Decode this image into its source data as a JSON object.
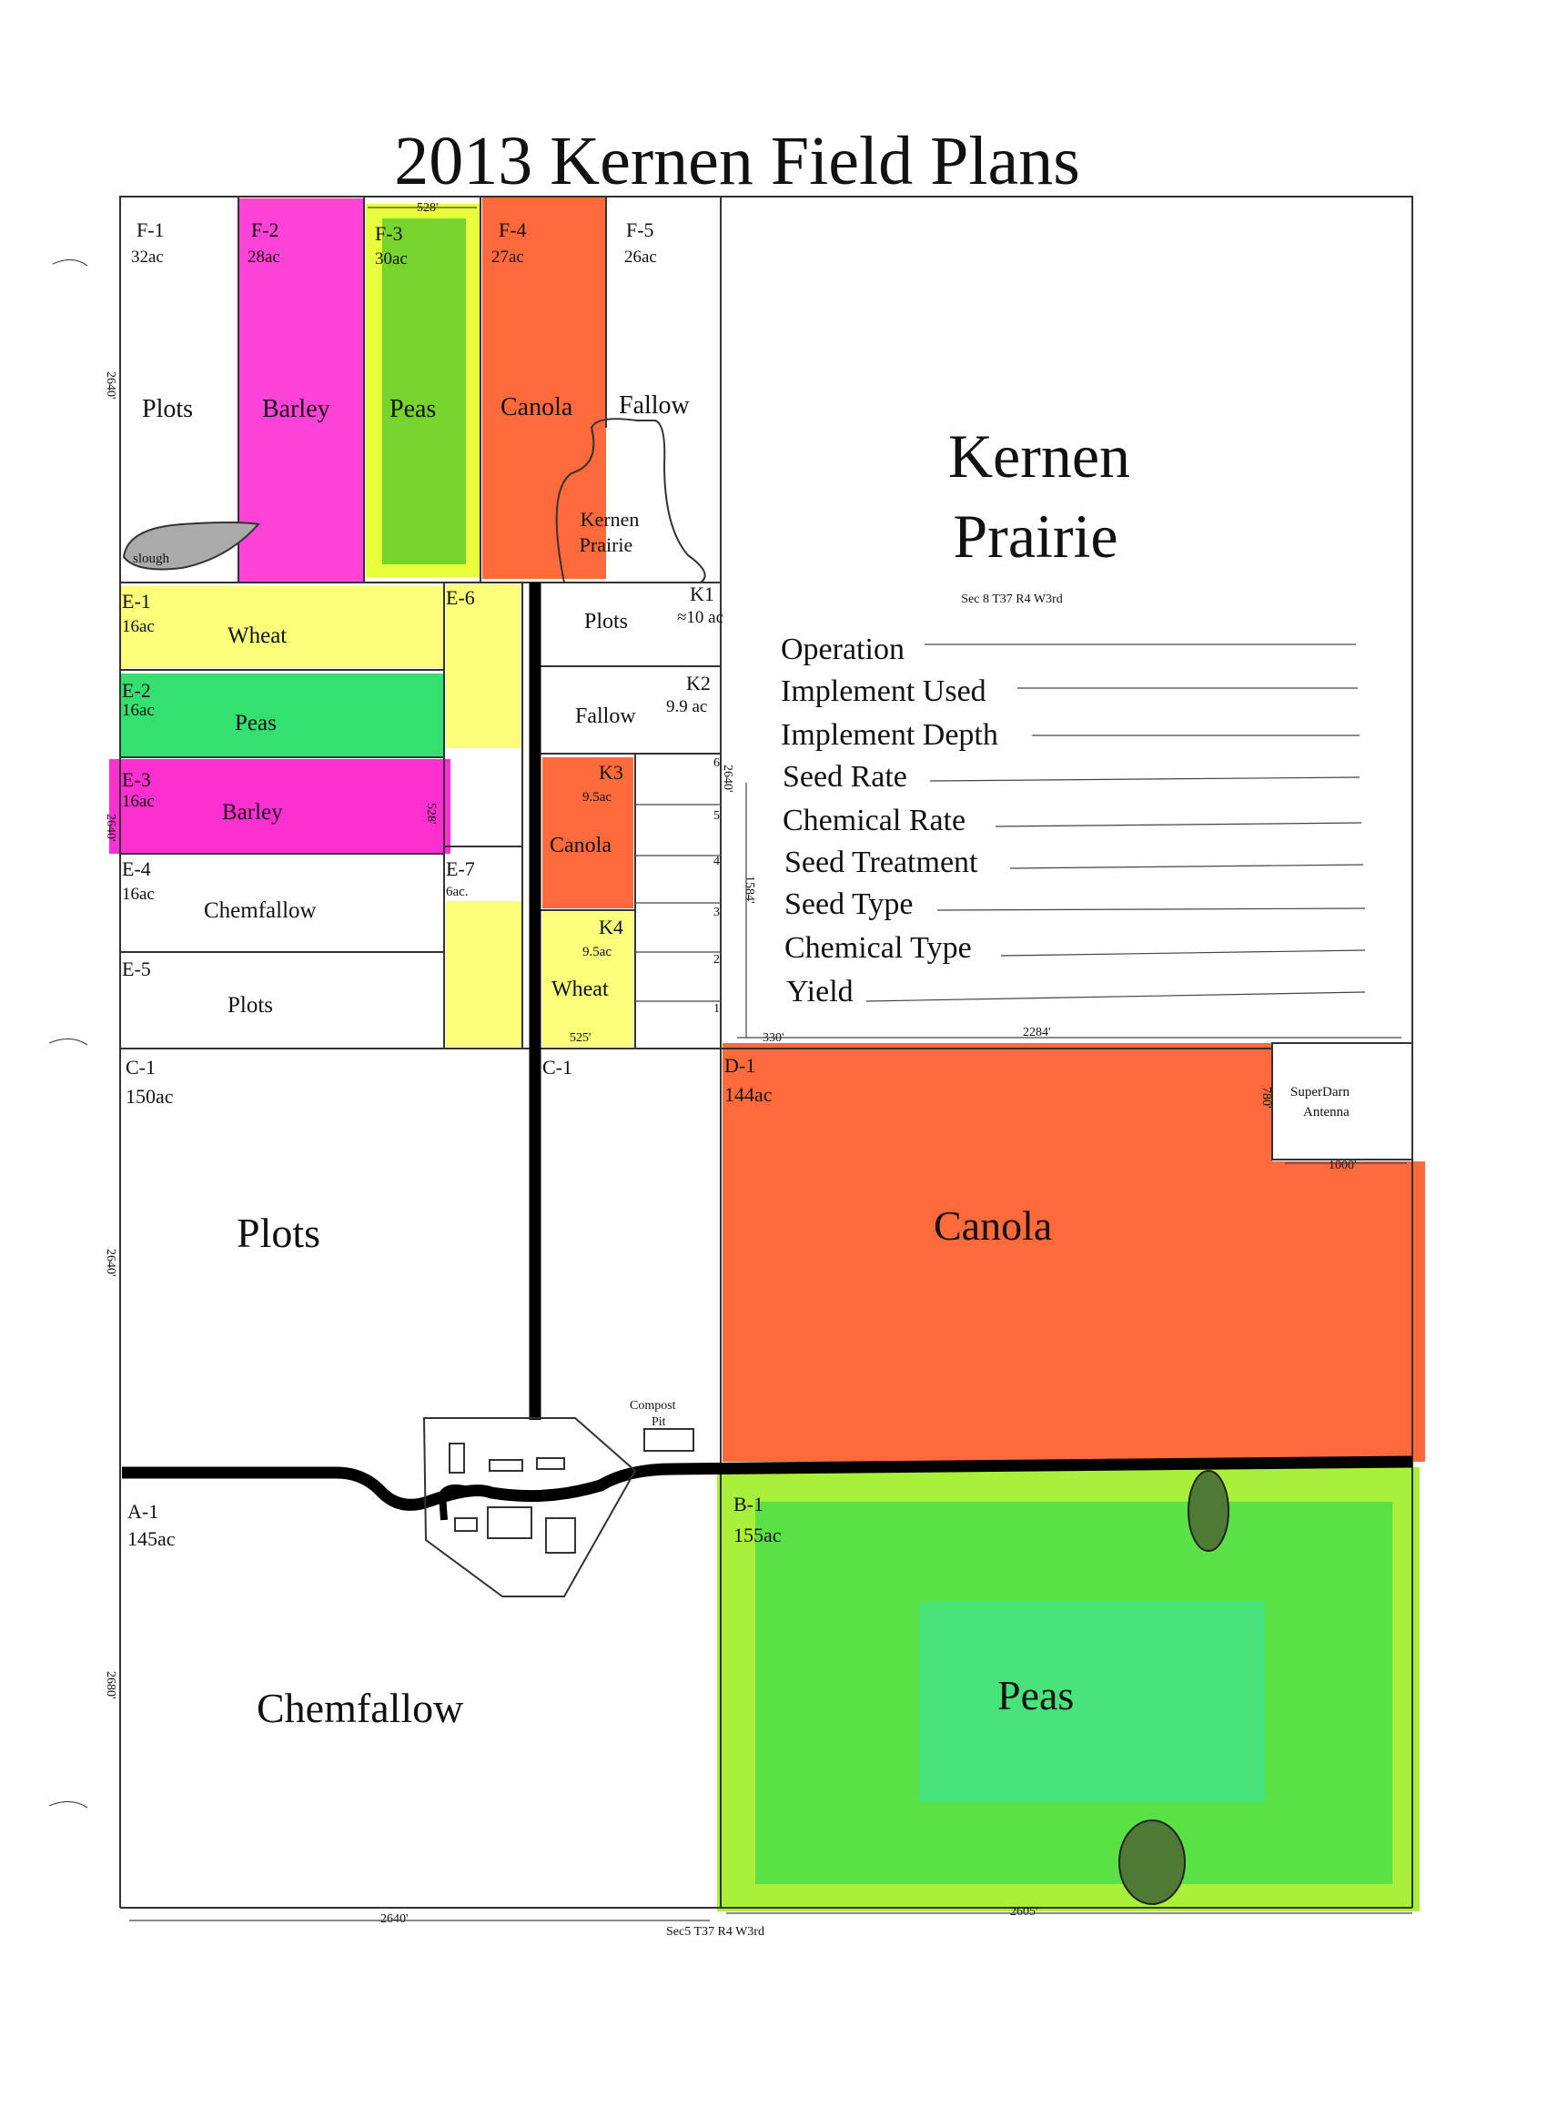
{
  "title": "2013 Kernen Field Plans",
  "colors": {
    "barley": "#ff2fd2",
    "peas": "#7fe63a",
    "peas_light": "#e8ff3c",
    "canola": "#ff6a3d",
    "wheat": "#fbff7a",
    "slough": "#aaaaaa",
    "road": "#000000"
  },
  "fields": {
    "F1": {
      "id": "F-1",
      "acres": "32ac",
      "crop": "Plots"
    },
    "F2": {
      "id": "F-2",
      "acres": "28ac",
      "crop": "Barley"
    },
    "F3": {
      "id": "F-3",
      "acres": "30ac",
      "crop": "Peas"
    },
    "F4": {
      "id": "F-4",
      "acres": "27ac",
      "crop": "Canola"
    },
    "F5": {
      "id": "F-5",
      "acres": "26ac",
      "crop": "Fallow"
    },
    "E1": {
      "id": "E-1",
      "acres": "16ac",
      "crop": "Wheat"
    },
    "E2": {
      "id": "E-2",
      "acres": "16ac",
      "crop": "Peas"
    },
    "E3": {
      "id": "E-3",
      "acres": "16ac",
      "crop": "Barley"
    },
    "E4": {
      "id": "E-4",
      "acres": "16ac",
      "crop": "Chemfallow"
    },
    "E5": {
      "id": "E-5",
      "crop": "Plots"
    },
    "E6": {
      "id": "E-6"
    },
    "E7": {
      "id": "E-7",
      "acres": "6ac."
    },
    "K1": {
      "id": "K1",
      "acres": "≈10 ac",
      "crop": "Plots"
    },
    "K2": {
      "id": "K2",
      "acres": "9.9 ac",
      "crop": "Fallow"
    },
    "K3": {
      "id": "K3",
      "acres": "9.5ac",
      "crop": "Canola"
    },
    "K4": {
      "id": "K4",
      "acres": "9.5ac",
      "crop": "Wheat"
    },
    "C1": {
      "id": "C-1",
      "acres": "150ac",
      "crop": "Plots"
    },
    "C1b": {
      "id": "C-1"
    },
    "D1": {
      "id": "D-1",
      "acres": "144ac",
      "crop": "Canola"
    },
    "A1": {
      "id": "A-1",
      "acres": "145ac",
      "crop": "Chemfallow"
    },
    "B1": {
      "id": "B-1",
      "acres": "155ac",
      "crop": "Peas"
    }
  },
  "labels": {
    "slough": "slough",
    "kernen_prairie_small_1": "Kernen",
    "kernen_prairie_small_2": "Prairie",
    "kernen_prairie_1": "Kernen",
    "kernen_prairie_2": "Prairie",
    "section_north": "Sec 8 T37 R4 W3rd",
    "section_south": "Sec5 T37 R4 W3rd",
    "superdarn_1": "SuperDarn",
    "superdarn_2": "Antenna",
    "compost_1": "Compost",
    "compost_2": "Pit"
  },
  "strip_numbers": [
    "1",
    "2",
    "3",
    "4",
    "5",
    "6"
  ],
  "dimensions": {
    "top_f3": "528'",
    "left_f": "2640'",
    "e3_right": "528'",
    "left_e": "2640'",
    "k_2640": "2640'",
    "k_1584": "1584'",
    "k4_bottom": "525'",
    "bottom_330": "330'",
    "bottom_2284": "2284'",
    "superdarn_780": "780'",
    "superdarn_1000": "1000'",
    "left_c": "2640'",
    "left_a": "2680'",
    "bottom_a": "2640'",
    "bottom_b": "2605'"
  },
  "form": {
    "fields": [
      "Operation",
      "Implement Used",
      "Implement Depth",
      "Seed Rate",
      "Chemical Rate",
      "Seed Treatment",
      "Seed Type",
      "Chemical Type",
      "Yield"
    ]
  }
}
